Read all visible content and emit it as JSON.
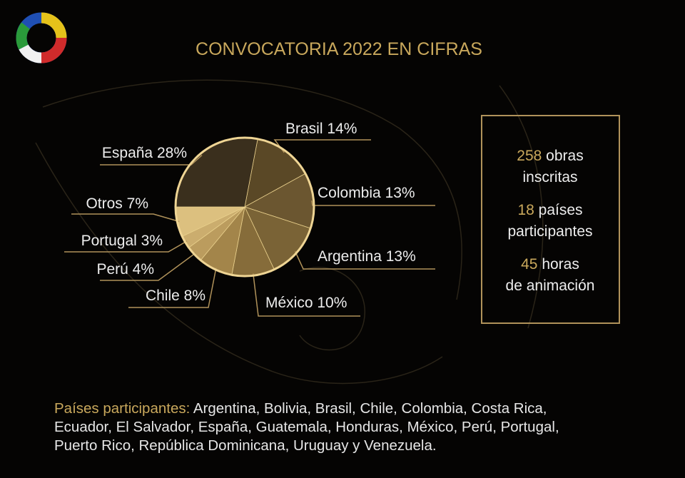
{
  "chart_data": {
    "type": "pie",
    "title": "CONVOCATORIA 2022 EN CIFRAS",
    "categories": [
      "Brasil",
      "Colombia",
      "Argentina",
      "México",
      "Chile",
      "Perú",
      "Portugal",
      "Otros",
      "España"
    ],
    "values": [
      14,
      13,
      13,
      10,
      8,
      4,
      3,
      7,
      28
    ],
    "value_labels": [
      "14%",
      "13%",
      "13%",
      "10%",
      "8%",
      "4%",
      "3%",
      "7%",
      "28%"
    ],
    "colors": [
      "#5a4826",
      "#6b5630",
      "#7a6336",
      "#866c3a",
      "#a3854a",
      "#bb9c5e",
      "#cbad6e",
      "#dcc07f",
      "#3a2f1d"
    ]
  },
  "stats": [
    {
      "number": "258",
      "lines": [
        "obras",
        "inscritas"
      ]
    },
    {
      "number": "18",
      "lines": [
        "países",
        "participantes"
      ]
    },
    {
      "number": "45",
      "lines": [
        "horas",
        "de animación"
      ]
    }
  ],
  "footer": {
    "label": "Países participantes:",
    "lines": [
      "Argentina, Bolivia, Brasil, Chile, Colombia, Costa Rica,",
      "Ecuador, El Salvador, España, Guatemala, Honduras, México, Perú, Portugal,",
      "Puerto Rico, República Dominicana, Uruguay y Venezuela."
    ]
  }
}
